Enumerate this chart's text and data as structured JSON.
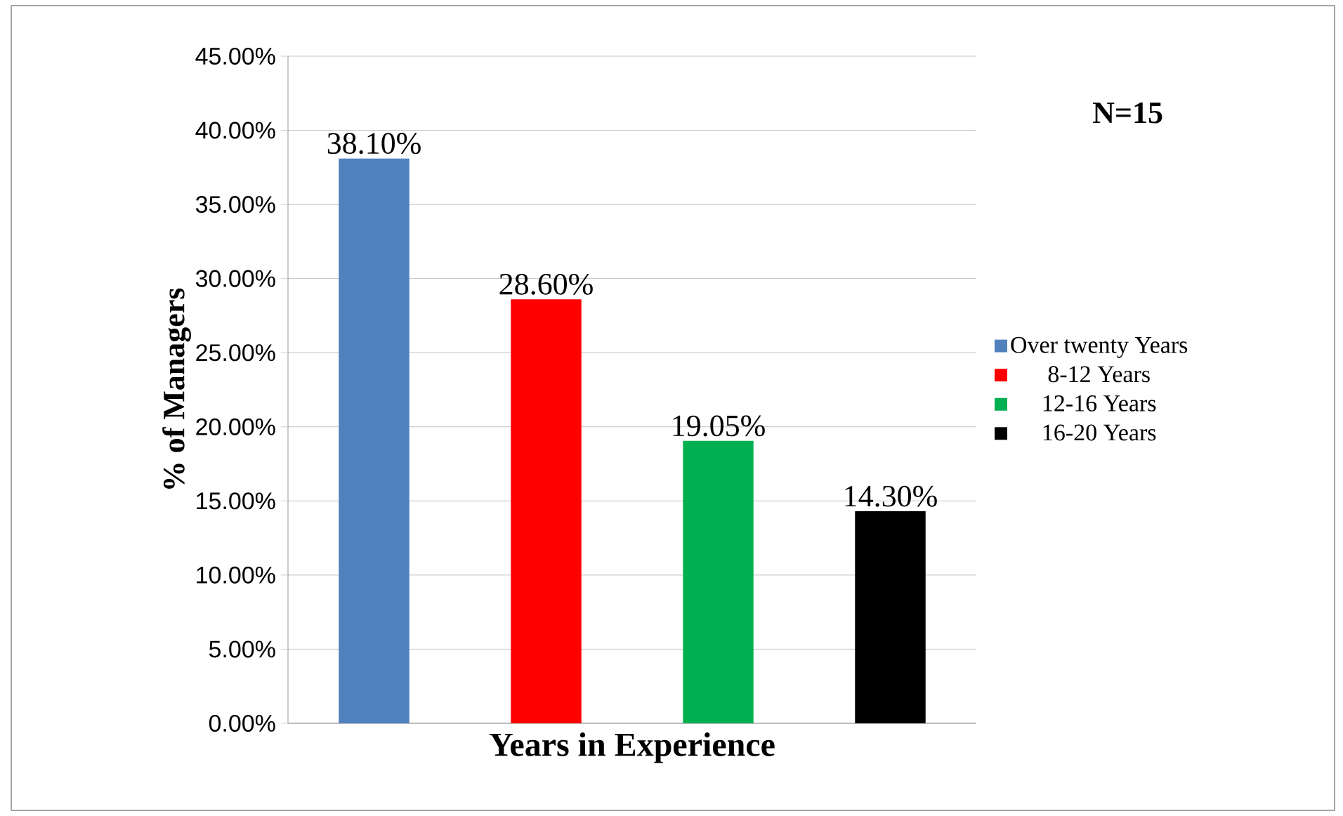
{
  "chart_data": {
    "type": "bar",
    "xlabel": "Years in Experience",
    "ylabel": "% of Managers",
    "categories": [
      null,
      null,
      null,
      null
    ],
    "series": [
      {
        "name": "Over twenty Years",
        "color": "#4f81bd",
        "values": [
          38.1,
          null,
          null,
          null
        ],
        "value_labels": [
          "38.10%",
          null,
          null,
          null
        ]
      },
      {
        "name": "8-12 Years",
        "color": "#ff0000",
        "values": [
          null,
          28.6,
          null,
          null
        ],
        "value_labels": [
          null,
          "28.60%",
          null,
          null
        ]
      },
      {
        "name": "12-16 Years",
        "color": "#00b050",
        "values": [
          null,
          null,
          19.05,
          null
        ],
        "value_labels": [
          null,
          null,
          "19.05%",
          null
        ]
      },
      {
        "name": "16-20  Years",
        "color": "#000000",
        "values": [
          null,
          null,
          null,
          14.3
        ],
        "value_labels": [
          null,
          null,
          null,
          "14.30%"
        ]
      }
    ],
    "ylim": [
      0,
      45
    ],
    "yticks": [
      {
        "value": 0,
        "label": "0.00%"
      },
      {
        "value": 5,
        "label": "5.00%"
      },
      {
        "value": 10,
        "label": "10.00%"
      },
      {
        "value": 15,
        "label": "15.00%"
      },
      {
        "value": 20,
        "label": "20.00%"
      },
      {
        "value": 25,
        "label": "25.00%"
      },
      {
        "value": 30,
        "label": "30.00%"
      },
      {
        "value": 35,
        "label": "35.00%"
      },
      {
        "value": 40,
        "label": "40.00%"
      },
      {
        "value": 45,
        "label": "45.00%"
      }
    ],
    "grid": "y",
    "legend": "right",
    "annotations": [
      "N=15"
    ]
  }
}
